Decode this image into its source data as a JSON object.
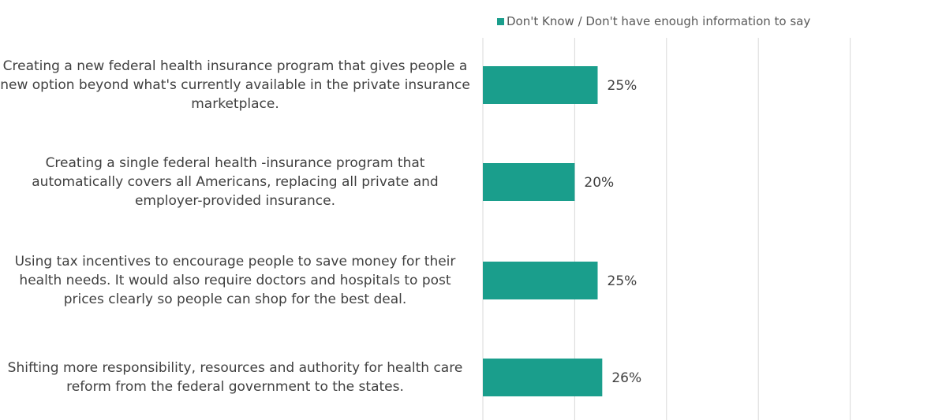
{
  "chart_data": {
    "type": "bar",
    "orientation": "horizontal",
    "categories": [
      "Creating a new federal health insurance program that gives people a new option beyond what's currently available in the private insurance marketplace.",
      "Creating a single federal health -insurance program that automatically covers all Americans, replacing all private and employer-provided insurance.",
      "Using tax incentives to encourage people to save money for their health needs. It would also require doctors and hospitals to post prices clearly so people can shop for the best deal.",
      "Shifting more responsibility, resources and authority for health care reform from the federal government to the states."
    ],
    "series": [
      {
        "name": "Don't Know / Don't have enough information to say",
        "values": [
          25,
          20,
          25,
          26
        ],
        "color": "#1a9e8c"
      }
    ],
    "data_labels": [
      "25%",
      "20%",
      "25%",
      "26%"
    ],
    "xlim": [
      0,
      100
    ],
    "grid": true,
    "legend_position": "top"
  }
}
